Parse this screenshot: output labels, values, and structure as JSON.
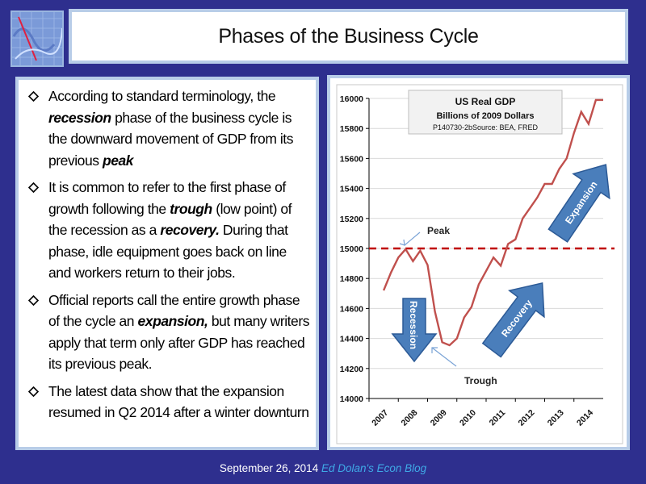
{
  "slide": {
    "title": "Phases of the Business Cycle",
    "bullets": [
      [
        {
          "t": "According to standard terminology, the "
        },
        {
          "t": "recession",
          "k": 1
        },
        {
          "t": " phase of the business cycle is the downward movement of GDP from its previous "
        },
        {
          "t": "peak",
          "k": 1
        }
      ],
      [
        {
          "t": "It is common to refer to the first phase of growth following the "
        },
        {
          "t": "trough",
          "k": 1
        },
        {
          "t": " (low point) of the recession as a "
        },
        {
          "t": "recovery.",
          "k": 1
        },
        {
          "t": " During that phase, idle equipment  goes back on line and workers return to their jobs."
        }
      ],
      [
        {
          "t": "Official reports call the entire growth phase of the cycle an "
        },
        {
          "t": "expansion,",
          "k": 1
        },
        {
          "t": " but many writers apply that term only after GDP has reached its previous peak."
        }
      ],
      [
        {
          "t": "The latest data show that the expansion resumed in Q2 2014 after a winter downturn"
        }
      ]
    ]
  },
  "footer": {
    "date": "September 26, 2014",
    "blog": "Ed Dolan's Econ Blog"
  },
  "chart_data": {
    "type": "line",
    "title": "US Real GDP",
    "subtitle": "Billions of 2009  Dollars",
    "source": "P140730-2bSource: BEA, FRED",
    "categories": [
      "2007",
      "2008",
      "2009",
      "2010",
      "2011",
      "2012",
      "2013",
      "2014"
    ],
    "ylim": [
      14000,
      16000
    ],
    "yticks": [
      "14000",
      "14200",
      "14400",
      "14600",
      "14800",
      "15000",
      "15200",
      "15400",
      "15600",
      "15800",
      "16000"
    ],
    "series": [
      {
        "name": "US Real GDP",
        "color": "#c0504d",
        "x": [
          0,
          0.25,
          0.5,
          0.75,
          1,
          1.25,
          1.5,
          1.75,
          2,
          2.25,
          2.5,
          2.75,
          3,
          3.25,
          3.5,
          3.75,
          4,
          4.25,
          4.5,
          4.75,
          5,
          5.25,
          5.5,
          5.75,
          6,
          6.25,
          6.5,
          6.75,
          7,
          7.25,
          7.5
        ],
        "values": [
          14720,
          14840,
          14940,
          14995,
          14915,
          14985,
          14890,
          14580,
          14375,
          14355,
          14400,
          14540,
          14610,
          14760,
          14850,
          14940,
          14885,
          15030,
          15060,
          15200,
          15270,
          15340,
          15430,
          15430,
          15530,
          15600,
          15770,
          15910,
          15830,
          15990,
          15990
        ]
      }
    ],
    "reference_line": {
      "value": 15000,
      "color": "#c00000",
      "style": "dashed"
    },
    "annotations": {
      "peak": "Peak",
      "trough": "Trough",
      "recession": "Recession",
      "recovery": "Recovery",
      "expansion": "Expansion"
    },
    "arrow_color": "#4a7ebb"
  }
}
